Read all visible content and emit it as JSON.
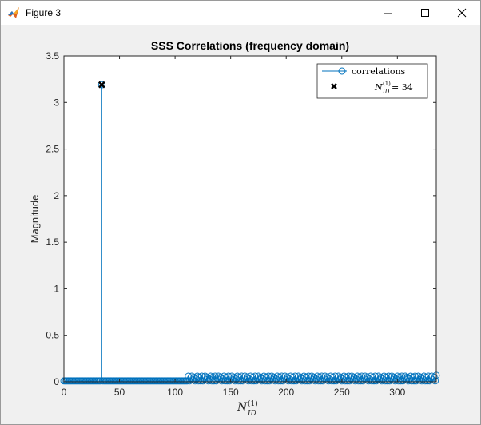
{
  "window": {
    "title": "Figure 3",
    "icon": "matlab-logo-icon",
    "controls": [
      "minimize-icon",
      "maximize-icon",
      "close-icon"
    ]
  },
  "chart_data": {
    "type": "stem",
    "title": "SSS Correlations (frequency domain)",
    "xlabel": {
      "base": "N",
      "sup": "(1)",
      "sub": "ID"
    },
    "ylabel": "Magnitude",
    "xlim": [
      0,
      335
    ],
    "ylim": [
      0,
      3.5
    ],
    "xticks": [
      "0",
      "50",
      "100",
      "150",
      "200",
      "250",
      "300"
    ],
    "yticks": [
      "0",
      "0.5",
      "1",
      "1.5",
      "2",
      "2.5",
      "3",
      "3.5"
    ],
    "grid": false,
    "legend": {
      "placement": "top-right",
      "entries": [
        {
          "label": "correlations",
          "marker": "o-line",
          "color": "#0072BD"
        },
        {
          "label": {
            "base": "N",
            "sup": "(1)",
            "sub": "ID",
            "rest": " = 34"
          },
          "marker": "x",
          "color": "#000000"
        }
      ]
    },
    "series": [
      {
        "name": "correlations",
        "color": "#0072BD",
        "x_start": 0,
        "x_end": 335,
        "baseline_low": 0.01,
        "segments": [
          {
            "from": 0,
            "to": 110,
            "value": 0.01
          },
          {
            "from": 111,
            "to": 335,
            "pattern": [
              0.01,
              0.06,
              0.01,
              0.04,
              0.06,
              0.02,
              0.05,
              0.01,
              0.03,
              0.06,
              0.01,
              0.05
            ]
          }
        ],
        "peak": {
          "x": 34,
          "value": 3.19
        },
        "last": {
          "x": 335,
          "value": 0.07
        }
      },
      {
        "name": "N_ID^(1) = 34",
        "color": "#000000",
        "points": [
          {
            "x": 34,
            "y": 3.19
          }
        ]
      }
    ]
  }
}
